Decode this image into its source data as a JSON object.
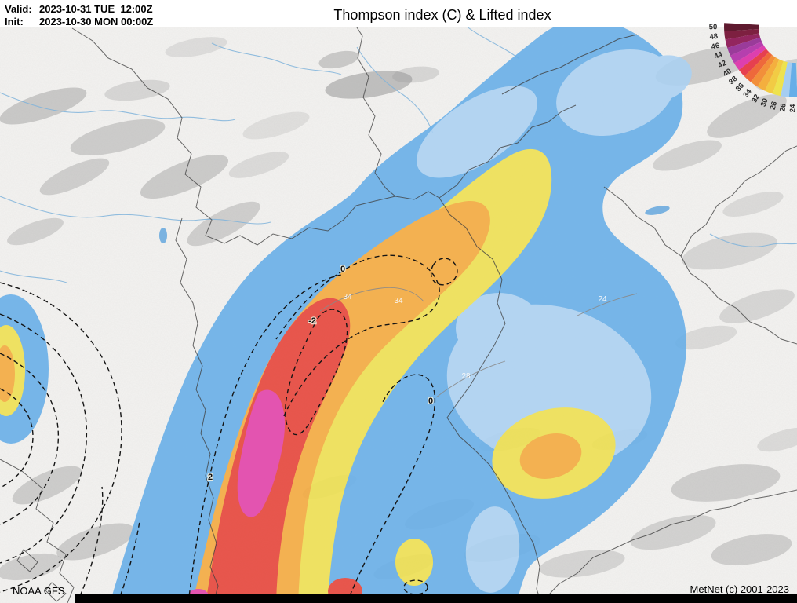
{
  "header": {
    "valid_label": "Valid:",
    "valid_value": "2023-10-31 TUE  12:00Z",
    "init_label": "Init:",
    "init_value": "2023-10-30 MON 00:00Z",
    "title": "Thompson index (C) & Lifted index"
  },
  "footer": {
    "source": "NOAA GFS",
    "credit": "MetNet (c) 2001-2023"
  },
  "legend": {
    "items": [
      {
        "value": "50",
        "color": "#5f1a2f"
      },
      {
        "value": "48",
        "color": "#7d2040"
      },
      {
        "value": "46",
        "color": "#93265f"
      },
      {
        "value": "44",
        "color": "#9a3b9a"
      },
      {
        "value": "42",
        "color": "#b63fae"
      },
      {
        "value": "40",
        "color": "#dd3fae"
      },
      {
        "value": "38",
        "color": "#e6404f"
      },
      {
        "value": "36",
        "color": "#ee693b"
      },
      {
        "value": "34",
        "color": "#f28f3a"
      },
      {
        "value": "32",
        "color": "#f4af3e"
      },
      {
        "value": "30",
        "color": "#f2cb44"
      },
      {
        "value": "28",
        "color": "#eee24e"
      },
      {
        "value": "26",
        "color": "#a5cdf1"
      },
      {
        "value": "24",
        "color": "#66aee8"
      }
    ]
  },
  "map": {
    "fill_colors": {
      "blue": "#66aee8",
      "lightblue": "#abd1f2",
      "yellow": "#eee04f",
      "orange": "#f4a93c",
      "red": "#e64237",
      "magenta": "#e23fa8"
    },
    "contour_labels": [
      {
        "text": "0"
      },
      {
        "text": "34"
      },
      {
        "text": "34"
      },
      {
        "text": "-2"
      },
      {
        "text": "2"
      },
      {
        "text": "0"
      },
      {
        "text": "28"
      },
      {
        "text": "24"
      }
    ]
  }
}
